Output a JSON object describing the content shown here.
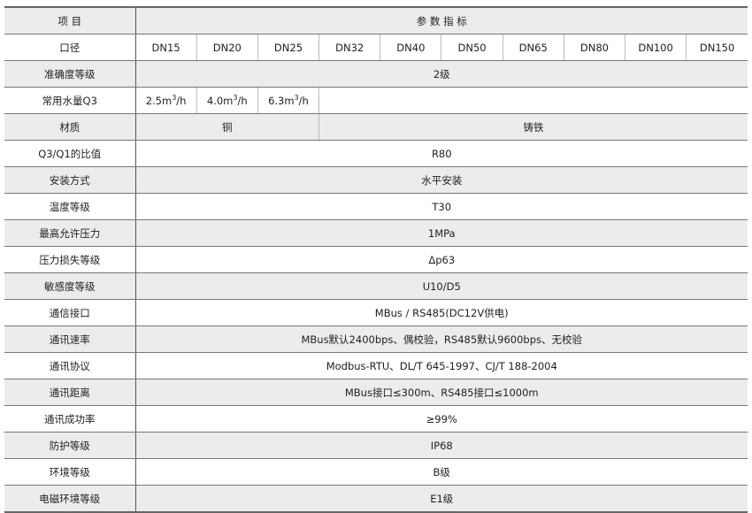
{
  "header": {
    "item": "项 目",
    "params": "参 数 指 标"
  },
  "diameter": {
    "label": "口径",
    "values": [
      "DN15",
      "DN20",
      "DN25",
      "DN32",
      "DN40",
      "DN50",
      "DN65",
      "DN80",
      "DN100",
      "DN150"
    ]
  },
  "accuracy": {
    "label": "准确度等级",
    "value": "2级"
  },
  "q3": {
    "label": "常用水量Q3",
    "values": [
      {
        "num": "2.5m",
        "sup": "3",
        "unit": "/h"
      },
      {
        "num": "4.0m",
        "sup": "3",
        "unit": "/h"
      },
      {
        "num": "6.3m",
        "sup": "3",
        "unit": "/h"
      }
    ]
  },
  "material": {
    "label": "材质",
    "copper": "铜",
    "iron": "铸铁"
  },
  "rows": [
    {
      "label": "Q3/Q1的比值",
      "value": "R80"
    },
    {
      "label": "安装方式",
      "value": "水平安装"
    },
    {
      "label": "温度等级",
      "value": "T30"
    },
    {
      "label": "最高允许压力",
      "value": "1MPa"
    },
    {
      "label": "压力损失等级",
      "value": "Δp63"
    },
    {
      "label": "敏感度等级",
      "value": "U10/D5"
    },
    {
      "label": "通信接口",
      "value": "MBus / RS485(DC12V供电)"
    },
    {
      "label": "通讯速率",
      "value": "MBus默认2400bps、偶校验，RS485默认9600bps、无校验"
    },
    {
      "label": "通讯协议",
      "value": "Modbus-RTU、DL/T 645-1997、CJ/T 188-2004"
    },
    {
      "label": "通讯距离",
      "value": "MBus接口≤300m、RS485接口≤1000m"
    },
    {
      "label": "通讯成功率",
      "value": "≥99%"
    },
    {
      "label": "防护等级",
      "value": "IP68"
    },
    {
      "label": "环境等级",
      "value": "B级"
    },
    {
      "label": "电磁环境等级",
      "value": "E1级"
    }
  ]
}
